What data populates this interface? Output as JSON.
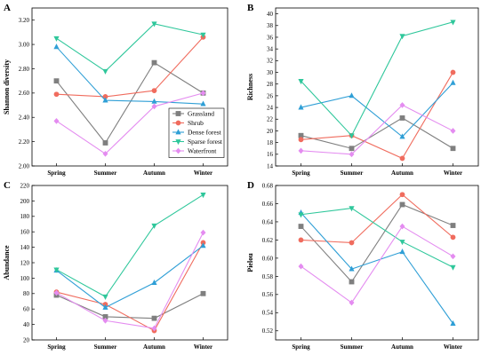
{
  "chart_data": [
    {
      "panel": "A",
      "type": "line",
      "ylabel": "Shannon diversity",
      "xlabel": "",
      "categories": [
        "Spring",
        "Summer",
        "Autumn",
        "Winter"
      ],
      "ylim": [
        2.0,
        3.3
      ],
      "yticks": [
        2.0,
        2.2,
        2.4,
        2.6,
        2.8,
        3.0,
        3.2
      ],
      "series": [
        {
          "name": "Grassland",
          "values": [
            2.7,
            2.19,
            2.85,
            2.6
          ]
        },
        {
          "name": "Shrub",
          "values": [
            2.59,
            2.57,
            2.62,
            3.06
          ]
        },
        {
          "name": "Dense forest",
          "values": [
            2.98,
            2.54,
            2.53,
            2.51
          ]
        },
        {
          "name": "Sparse forest",
          "values": [
            3.05,
            2.78,
            3.17,
            3.08
          ]
        },
        {
          "name": "Waterfront",
          "values": [
            2.37,
            2.1,
            2.49,
            2.6
          ]
        }
      ]
    },
    {
      "panel": "B",
      "type": "line",
      "ylabel": "Richness",
      "xlabel": "",
      "categories": [
        "Spring",
        "Summer",
        "Autumn",
        "Winter"
      ],
      "ylim": [
        14,
        41
      ],
      "yticks": [
        14,
        16,
        18,
        20,
        22,
        24,
        26,
        28,
        30,
        32,
        34,
        36,
        38,
        40
      ],
      "series": [
        {
          "name": "Grassland",
          "values": [
            19.2,
            17.0,
            22.2,
            17.0
          ]
        },
        {
          "name": "Shrub",
          "values": [
            18.5,
            19.2,
            15.3,
            30.0
          ]
        },
        {
          "name": "Dense forest",
          "values": [
            24.0,
            26.0,
            19.0,
            28.2
          ]
        },
        {
          "name": "Sparse forest",
          "values": [
            28.5,
            19.2,
            36.2,
            38.6
          ]
        },
        {
          "name": "Waterfront",
          "values": [
            16.6,
            16.0,
            24.4,
            20.0
          ]
        }
      ]
    },
    {
      "panel": "C",
      "type": "line",
      "ylabel": "Abundance",
      "xlabel": "",
      "categories": [
        "Spring",
        "Summer",
        "Autumn",
        "Winter"
      ],
      "ylim": [
        20,
        220
      ],
      "yticks": [
        20,
        40,
        60,
        80,
        100,
        120,
        140,
        160,
        180,
        200,
        220
      ],
      "series": [
        {
          "name": "Grassland",
          "values": [
            78,
            50,
            48,
            80
          ]
        },
        {
          "name": "Shrub",
          "values": [
            82,
            66,
            32,
            146
          ]
        },
        {
          "name": "Dense forest",
          "values": [
            110,
            62,
            94,
            142
          ]
        },
        {
          "name": "Sparse forest",
          "values": [
            111,
            76,
            168,
            208
          ]
        },
        {
          "name": "Waterfront",
          "values": [
            81,
            45,
            35,
            159
          ]
        }
      ]
    },
    {
      "panel": "D",
      "type": "line",
      "ylabel": "Pielou",
      "xlabel": "",
      "categories": [
        "Spring",
        "Summer",
        "Autumn",
        "Winter"
      ],
      "ylim": [
        0.51,
        0.68
      ],
      "yticks": [
        0.52,
        0.54,
        0.56,
        0.58,
        0.6,
        0.62,
        0.64,
        0.66,
        0.68
      ],
      "series": [
        {
          "name": "Grassland",
          "values": [
            0.635,
            0.574,
            0.659,
            0.636
          ]
        },
        {
          "name": "Shrub",
          "values": [
            0.62,
            0.617,
            0.67,
            0.623
          ]
        },
        {
          "name": "Dense forest",
          "values": [
            0.65,
            0.588,
            0.607,
            0.528
          ]
        },
        {
          "name": "Sparse forest",
          "values": [
            0.648,
            0.655,
            0.618,
            0.59
          ]
        },
        {
          "name": "Waterfront",
          "values": [
            0.591,
            0.551,
            0.635,
            0.602
          ]
        }
      ]
    }
  ],
  "legend": {
    "placement": "inside-lower-right-panel-A",
    "entries": [
      "Grassland",
      "Shrub",
      "Dense forest",
      "Sparse forest",
      "Waterfront"
    ]
  },
  "colors": {
    "Grassland": "#7f7f7f",
    "Shrub": "#f06c5e",
    "Dense forest": "#2f9fd6",
    "Sparse forest": "#2fc79b",
    "Waterfront": "#e48cf0"
  },
  "markers": {
    "Grassland": "square",
    "Shrub": "circle",
    "Dense forest": "triangle-up",
    "Sparse forest": "triangle-down",
    "Waterfront": "diamond"
  }
}
